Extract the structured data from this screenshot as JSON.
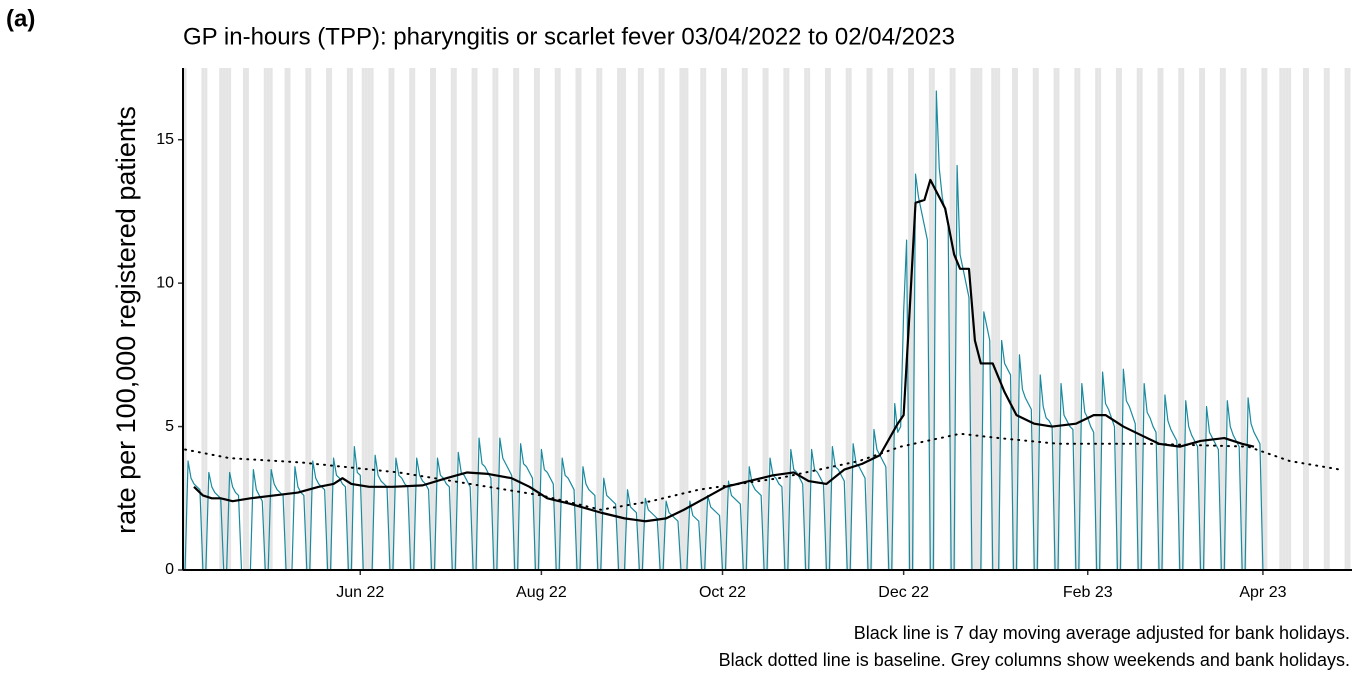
{
  "chart_data": {
    "type": "line",
    "panel_label": "(a)",
    "title": "GP in-hours (TPP): pharyngitis or scarlet fever 03/04/2022 to 02/04/2023",
    "y_label": "rate per 100,000 registered patients",
    "notes": [
      "Black line is 7 day moving average adjusted for bank holidays.",
      "Black dotted line is baseline. Grey columns show weekends and bank holidays."
    ],
    "xlim": [
      -0.7,
      393
    ],
    "xticks": [
      {
        "value": 59,
        "label": "Jun 22"
      },
      {
        "value": 120,
        "label": "Aug 22"
      },
      {
        "value": 181,
        "label": "Oct 22"
      },
      {
        "value": 242,
        "label": "Dec 22"
      },
      {
        "value": 304,
        "label": "Feb 23"
      },
      {
        "value": 363,
        "label": "Apr 23"
      }
    ],
    "ylim": [
      0,
      17.5
    ],
    "yticks": [
      0,
      5,
      10,
      15
    ],
    "shaded_color": "#e5e5e5",
    "shaded_days": [
      0,
      6,
      7,
      13,
      14,
      20,
      21,
      27,
      28,
      34,
      35,
      41,
      42,
      48,
      49,
      55,
      56,
      62,
      63,
      69,
      70,
      76,
      77,
      83,
      84,
      90,
      91,
      97,
      98,
      104,
      105,
      111,
      112,
      118,
      119,
      125,
      126,
      132,
      133,
      139,
      140,
      146,
      147,
      153,
      154,
      160,
      161,
      167,
      168,
      174,
      175,
      181,
      182,
      188,
      189,
      195,
      196,
      202,
      203,
      209,
      210,
      216,
      217,
      223,
      224,
      230,
      231,
      237,
      238,
      244,
      245,
      251,
      252,
      258,
      259,
      265,
      266,
      272,
      273,
      279,
      280,
      286,
      287,
      293,
      294,
      300,
      301,
      307,
      308,
      314,
      315,
      321,
      322,
      328,
      329,
      335,
      336,
      342,
      343,
      349,
      350,
      356,
      357,
      363,
      364,
      370,
      371,
      377,
      378,
      384,
      385,
      391,
      392,
      12,
      15,
      29,
      60,
      61,
      148,
      169,
      267,
      268,
      274,
      369,
      372
    ],
    "x": [
      0,
      1,
      2,
      3,
      4,
      5,
      6,
      7,
      8,
      9,
      10,
      11,
      12,
      13,
      14,
      15,
      16,
      17,
      18,
      19,
      20,
      21,
      22,
      23,
      24,
      25,
      26,
      27,
      28,
      29,
      30,
      31,
      32,
      33,
      34,
      35,
      36,
      37,
      38,
      39,
      40,
      41,
      42,
      43,
      44,
      45,
      46,
      47,
      48,
      49,
      50,
      51,
      52,
      53,
      54,
      55,
      56,
      57,
      58,
      59,
      60,
      61,
      62,
      63,
      64,
      65,
      66,
      67,
      68,
      69,
      70,
      71,
      72,
      73,
      74,
      75,
      76,
      77,
      78,
      79,
      80,
      81,
      82,
      83,
      84,
      85,
      86,
      87,
      88,
      89,
      90,
      91,
      92,
      93,
      94,
      95,
      96,
      97,
      98,
      99,
      100,
      101,
      102,
      103,
      104,
      105,
      106,
      107,
      108,
      109,
      110,
      111,
      112,
      113,
      114,
      115,
      116,
      117,
      118,
      119,
      120,
      121,
      122,
      123,
      124,
      125,
      126,
      127,
      128,
      129,
      130,
      131,
      132,
      133,
      134,
      135,
      136,
      137,
      138,
      139,
      140,
      141,
      142,
      143,
      144,
      145,
      146,
      147,
      148,
      149,
      150,
      151,
      152,
      153,
      154,
      155,
      156,
      157,
      158,
      159,
      160,
      161,
      162,
      163,
      164,
      165,
      166,
      167,
      168,
      169,
      170,
      171,
      172,
      173,
      174,
      175,
      176,
      177,
      178,
      179,
      180,
      181,
      182,
      183,
      184,
      185,
      186,
      187,
      188,
      189,
      190,
      191,
      192,
      193,
      194,
      195,
      196,
      197,
      198,
      199,
      200,
      201,
      202,
      203,
      204,
      205,
      206,
      207,
      208,
      209,
      210,
      211,
      212,
      213,
      214,
      215,
      216,
      217,
      218,
      219,
      220,
      221,
      222,
      223,
      224,
      225,
      226,
      227,
      228,
      229,
      230,
      231,
      232,
      233,
      234,
      235,
      236,
      237,
      238,
      239,
      240,
      241,
      242,
      243,
      244,
      245,
      246,
      247,
      248,
      249,
      250,
      251,
      252,
      253,
      254,
      255,
      256,
      257,
      258,
      259,
      260,
      261,
      262,
      263,
      264,
      265,
      266,
      267,
      268,
      269,
      270,
      271,
      272,
      273,
      274,
      275,
      276,
      277,
      278,
      279,
      280,
      281,
      282,
      283,
      284,
      285,
      286,
      287,
      288,
      289,
      290,
      291,
      292,
      293,
      294,
      295,
      296,
      297,
      298,
      299,
      300,
      301,
      302,
      303,
      304,
      305,
      306,
      307,
      308,
      309,
      310,
      311,
      312,
      313,
      314,
      315,
      316,
      317,
      318,
      319,
      320,
      321,
      322,
      323,
      324,
      325,
      326,
      327,
      328,
      329,
      330,
      331,
      332,
      333,
      334,
      335,
      336,
      337,
      338,
      339,
      340,
      341,
      342,
      343,
      344,
      345,
      346,
      347,
      348,
      349,
      350,
      351,
      352,
      353,
      354,
      355,
      356,
      357,
      358,
      359,
      360,
      361,
      362,
      363,
      364
    ],
    "series": [
      {
        "color": "#1b8a9e",
        "style": "solid",
        "width": 1.2,
        "values": [
          0,
          3.8,
          3.2,
          3.0,
          2.9,
          2.8,
          0,
          0,
          3.4,
          2.9,
          2.7,
          2.6,
          2.5,
          0,
          0,
          3.4,
          2.9,
          2.7,
          2.6,
          0,
          0,
          0,
          0,
          3.5,
          2.8,
          2.6,
          2.4,
          0,
          0,
          3.5,
          3.0,
          2.8,
          2.7,
          2.6,
          0,
          0,
          0,
          3.6,
          2.9,
          2.7,
          2.6,
          0,
          0,
          3.8,
          3.2,
          3.0,
          2.9,
          2.8,
          0,
          0,
          3.9,
          3.3,
          3.2,
          3.0,
          2.9,
          0,
          0,
          4.3,
          3.4,
          3.3,
          0,
          0,
          0,
          0,
          4.0,
          3.3,
          3.1,
          3.0,
          2.9,
          0,
          0,
          3.9,
          3.3,
          3.2,
          3.0,
          2.9,
          0,
          0,
          3.9,
          3.3,
          3.1,
          3.0,
          2.8,
          0,
          0,
          3.9,
          3.3,
          3.2,
          3.0,
          2.9,
          0,
          0,
          4.1,
          3.4,
          3.3,
          3.1,
          2.9,
          0,
          0,
          4.6,
          3.7,
          3.6,
          3.4,
          3.2,
          0,
          0,
          4.6,
          3.9,
          3.7,
          3.5,
          3.3,
          0,
          0,
          4.4,
          3.7,
          3.6,
          3.4,
          3.2,
          0,
          0,
          4.2,
          3.5,
          3.4,
          3.2,
          3.0,
          0,
          0,
          3.9,
          3.3,
          3.2,
          3.0,
          2.8,
          0,
          0,
          3.6,
          3.0,
          2.8,
          2.7,
          2.6,
          0,
          0,
          3.2,
          2.6,
          2.5,
          2.4,
          2.3,
          0,
          0,
          0,
          2.8,
          2.2,
          2.1,
          2.0,
          0,
          0,
          2.5,
          2.1,
          2.0,
          1.9,
          1.8,
          0,
          0,
          2.4,
          2.0,
          1.9,
          1.8,
          1.7,
          0,
          0,
          0,
          2.4,
          1.9,
          1.8,
          1.7,
          0,
          0,
          2.6,
          2.2,
          2.1,
          2.0,
          1.9,
          0,
          0,
          3.1,
          2.6,
          2.5,
          2.4,
          2.3,
          0,
          0,
          3.6,
          3.0,
          2.8,
          2.7,
          2.6,
          0,
          0,
          3.9,
          3.3,
          3.2,
          3.0,
          2.9,
          0,
          0,
          4.2,
          3.5,
          3.4,
          3.2,
          3.0,
          0,
          0,
          4.2,
          3.5,
          3.4,
          3.2,
          3.0,
          0,
          0,
          4.3,
          3.6,
          3.5,
          3.3,
          3.1,
          0,
          0,
          4.4,
          3.7,
          3.6,
          3.4,
          3.2,
          0,
          0,
          4.9,
          4.2,
          4.0,
          3.8,
          3.6,
          0,
          0,
          5.8,
          4.8,
          5.0,
          9.0,
          11.5,
          0,
          0,
          13.8,
          13.0,
          12.5,
          12.0,
          11.5,
          0,
          0,
          16.7,
          14.0,
          13.0,
          12.5,
          12.0,
          0,
          0,
          14.1,
          11.0,
          10.5,
          10.0,
          9.5,
          0,
          0,
          0,
          0,
          9.0,
          8.5,
          8.0,
          0,
          0,
          0,
          8.0,
          7.2,
          7.0,
          6.8,
          0,
          0,
          7.5,
          6.3,
          6.0,
          5.8,
          5.6,
          0,
          0,
          6.8,
          5.7,
          5.3,
          5.2,
          5.0,
          0,
          0,
          6.5,
          5.4,
          5.2,
          5.0,
          4.9,
          0,
          0,
          6.5,
          5.5,
          5.3,
          5.0,
          4.8,
          0,
          0,
          6.9,
          5.8,
          5.6,
          5.3,
          5.0,
          0,
          0,
          7.0,
          5.9,
          5.7,
          5.4,
          5.1,
          0,
          0,
          6.5,
          5.5,
          5.3,
          5.0,
          4.8,
          0,
          0,
          6.1,
          5.2,
          4.9,
          4.7,
          4.5,
          0,
          0,
          5.9,
          5.0,
          4.7,
          4.5,
          4.3,
          0,
          0,
          5.7,
          4.8,
          4.6,
          4.4,
          4.2,
          0,
          0,
          5.9,
          5.0,
          4.7,
          4.5,
          4.3,
          0,
          0,
          6.0,
          5.1,
          4.8,
          4.6,
          4.4,
          0,
          0
        ]
      },
      {
        "color": "#000000",
        "style": "solid",
        "width": 2.2,
        "x": [
          3,
          6,
          9,
          12,
          16,
          22,
          30,
          38,
          45,
          50,
          53,
          56,
          62,
          70,
          80,
          88,
          95,
          102,
          110,
          116,
          122,
          130,
          140,
          148,
          155,
          162,
          168,
          175,
          182,
          190,
          198,
          205,
          210,
          216,
          222,
          228,
          234,
          240,
          242,
          244,
          246,
          249,
          251,
          253,
          256,
          259,
          261,
          264,
          266,
          268,
          272,
          276,
          280,
          286,
          292,
          300,
          306,
          310,
          316,
          322,
          328,
          335,
          342,
          350,
          356,
          360
        ],
        "values": [
          2.9,
          2.6,
          2.5,
          2.5,
          2.4,
          2.5,
          2.6,
          2.7,
          2.9,
          3.0,
          3.2,
          3.0,
          2.9,
          2.9,
          2.95,
          3.2,
          3.4,
          3.35,
          3.2,
          2.9,
          2.5,
          2.3,
          2.0,
          1.8,
          1.7,
          1.8,
          2.1,
          2.5,
          2.9,
          3.1,
          3.3,
          3.4,
          3.1,
          3.0,
          3.5,
          3.7,
          4.0,
          5.1,
          5.4,
          9.0,
          12.8,
          12.9,
          13.6,
          13.2,
          12.6,
          11.0,
          10.5,
          10.5,
          8.0,
          7.2,
          7.2,
          6.2,
          5.4,
          5.1,
          5.0,
          5.1,
          5.4,
          5.4,
          5.0,
          4.7,
          4.4,
          4.3,
          4.5,
          4.6,
          4.4,
          4.3
        ]
      },
      {
        "color": "#000000",
        "style": "dotted",
        "width": 2,
        "x": [
          0,
          15,
          39,
          72,
          96,
          120,
          140,
          157,
          173,
          200,
          227,
          241,
          261,
          274,
          294,
          325,
          358,
          372,
          389
        ],
        "values": [
          4.2,
          3.9,
          3.75,
          3.4,
          3.0,
          2.6,
          2.1,
          2.4,
          2.8,
          3.2,
          3.8,
          4.3,
          4.75,
          4.6,
          4.4,
          4.4,
          4.3,
          3.8,
          3.5
        ]
      }
    ]
  }
}
